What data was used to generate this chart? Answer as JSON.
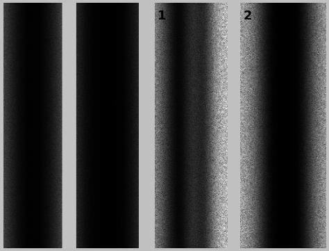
{
  "bg_color": "#c0c0c0",
  "fig_width": 4.74,
  "fig_height": 3.61,
  "dpi": 100,
  "labels": [
    "1",
    "2"
  ],
  "label_fontsize": 13,
  "label_color": "black",
  "seed": 42
}
